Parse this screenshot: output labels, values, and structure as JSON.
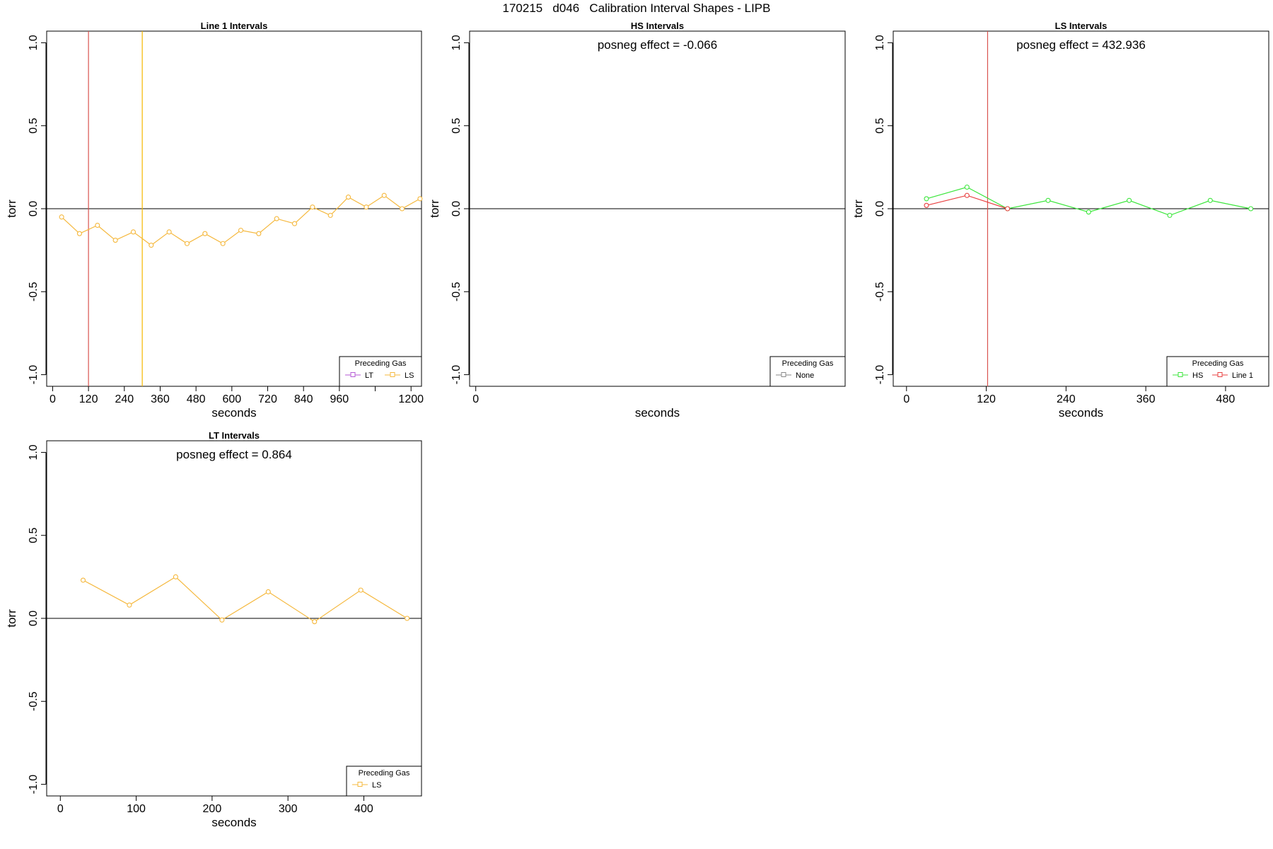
{
  "title": "170215   d046   Calibration Interval Shapes - LIPB",
  "chart_data": [
    {
      "type": "line",
      "title": "Line 1 Intervals",
      "xlabel": "seconds",
      "ylabel": "torr",
      "xlim": [
        -20,
        1235
      ],
      "ylim": [
        -1.07,
        1.07
      ],
      "xticks": [
        0,
        120,
        240,
        360,
        480,
        600,
        720,
        840,
        960,
        1080,
        1200
      ],
      "xtick_labels": [
        "0",
        "120",
        "240",
        "360",
        "480",
        "600",
        "720",
        "840",
        "960",
        "",
        "1200"
      ],
      "yticks": [
        -1.0,
        -0.5,
        0.0,
        0.5,
        1.0
      ],
      "ytick_labels": [
        "-1.0",
        "-0.5",
        "0.0",
        "0.5",
        "1.0"
      ],
      "vlines": [
        {
          "x": 120,
          "color": "#d9534f"
        },
        {
          "x": 300,
          "color": "#f5b800"
        }
      ],
      "annotation": "",
      "legend": {
        "title": "Preceding Gas",
        "position": "bottom-right",
        "entries": [
          {
            "label": "LT",
            "color": "#b45ad6"
          },
          {
            "label": "LS",
            "color": "#f5b83d"
          }
        ]
      },
      "series": [
        {
          "color": "#f5b83d",
          "x": [
            30,
            90,
            150,
            210,
            270,
            330,
            390,
            450,
            510,
            570,
            630,
            690,
            750,
            810,
            870,
            930,
            990,
            1050,
            1110,
            1170,
            1230
          ],
          "y": [
            -0.05,
            -0.15,
            -0.1,
            -0.19,
            -0.14,
            -0.22,
            -0.14,
            -0.21,
            -0.15,
            -0.21,
            -0.13,
            -0.15,
            -0.06,
            -0.09,
            0.01,
            -0.04,
            0.07,
            0.01,
            0.08,
            0.0,
            0.06
          ]
        }
      ]
    },
    {
      "type": "line",
      "title": "HS Intervals",
      "xlabel": "seconds",
      "ylabel": "torr",
      "xlim": [
        -20,
        1200
      ],
      "ylim": [
        -1.07,
        1.07
      ],
      "xticks": [
        0
      ],
      "xtick_labels": [
        "0"
      ],
      "yticks": [
        -1.0,
        -0.5,
        0.0,
        0.5,
        1.0
      ],
      "ytick_labels": [
        "-1.0",
        "-0.5",
        "0.0",
        "0.5",
        "1.0"
      ],
      "vlines": [],
      "annotation": "posneg effect = -0.066",
      "legend": {
        "title": "Preceding Gas",
        "position": "bottom-right",
        "entries": [
          {
            "label": "None",
            "color": "#888888"
          }
        ]
      },
      "series": []
    },
    {
      "type": "line",
      "title": "LS Intervals",
      "xlabel": "seconds",
      "ylabel": "torr",
      "xlim": [
        -20,
        545
      ],
      "ylim": [
        -1.07,
        1.07
      ],
      "xticks": [
        0,
        120,
        240,
        360,
        480
      ],
      "xtick_labels": [
        "0",
        "120",
        "240",
        "360",
        "480"
      ],
      "yticks": [
        -1.0,
        -0.5,
        0.0,
        0.5,
        1.0
      ],
      "ytick_labels": [
        "-1.0",
        "-0.5",
        "0.0",
        "0.5",
        "1.0"
      ],
      "vlines": [
        {
          "x": 122,
          "color": "#d9534f"
        }
      ],
      "annotation": "posneg effect = 432.936",
      "legend": {
        "title": "Preceding Gas",
        "position": "bottom-right",
        "entries": [
          {
            "label": "HS",
            "color": "#3ce63c"
          },
          {
            "label": "Line 1",
            "color": "#e84040"
          }
        ]
      },
      "series": [
        {
          "color": "#3ce63c",
          "x": [
            30,
            91,
            152,
            213,
            274,
            335,
            396,
            457,
            518
          ],
          "y": [
            0.06,
            0.13,
            0.0,
            0.05,
            -0.02,
            0.05,
            -0.04,
            0.05,
            0.0
          ]
        },
        {
          "color": "#e84040",
          "x": [
            30,
            91,
            152
          ],
          "y": [
            0.02,
            0.08,
            0.0
          ]
        }
      ]
    },
    {
      "type": "line",
      "title": "LT Intervals",
      "xlabel": "seconds",
      "ylabel": "torr",
      "xlim": [
        -18,
        476
      ],
      "ylim": [
        -1.07,
        1.07
      ],
      "xticks": [
        0,
        100,
        200,
        300,
        400
      ],
      "xtick_labels": [
        "0",
        "100",
        "200",
        "300",
        "400"
      ],
      "yticks": [
        -1.0,
        -0.5,
        0.0,
        0.5,
        1.0
      ],
      "ytick_labels": [
        "-1.0",
        "-0.5",
        "0.0",
        "0.5",
        "1.0"
      ],
      "vlines": [],
      "annotation": "posneg effect = 0.864",
      "legend": {
        "title": "Preceding Gas",
        "position": "bottom-right",
        "entries": [
          {
            "label": "LS",
            "color": "#f5b83d"
          }
        ]
      },
      "series": [
        {
          "color": "#f5b83d",
          "x": [
            30,
            91,
            152,
            213,
            274,
            335,
            396,
            457
          ],
          "y": [
            0.23,
            0.08,
            0.25,
            -0.01,
            0.16,
            -0.02,
            0.17,
            0.0
          ]
        }
      ]
    }
  ]
}
